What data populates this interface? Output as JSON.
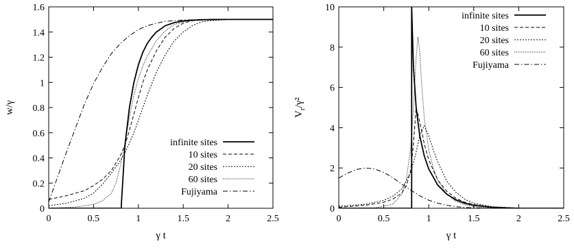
{
  "chart_data": [
    {
      "type": "line",
      "xlabel": "γ t",
      "ylabel": "w/γ",
      "xlim": [
        0,
        2.5
      ],
      "ylim": [
        0,
        1.6
      ],
      "xticks": [
        "0",
        "0.5",
        "1",
        "1.5",
        "2",
        "2.5"
      ],
      "yticks": [
        "0",
        "0.2",
        "0.4",
        "0.6",
        "0.8",
        "1",
        "1.2",
        "1.4",
        "1.6"
      ],
      "legend_position": "bottom-right",
      "series": [
        {
          "name": "infinite sites",
          "style": "solid-thick",
          "x": [
            0,
            0.81,
            0.81,
            0.85,
            0.9,
            0.95,
            1.0,
            1.05,
            1.1,
            1.15,
            1.2,
            1.3,
            1.4,
            1.5,
            1.6,
            1.7,
            1.8,
            2.0,
            2.5
          ],
          "y": [
            0,
            0,
            0.03,
            0.5,
            0.8,
            1.0,
            1.14,
            1.24,
            1.31,
            1.36,
            1.4,
            1.45,
            1.475,
            1.488,
            1.494,
            1.497,
            1.499,
            1.5,
            1.5
          ]
        },
        {
          "name": "10 sites",
          "style": "dashed",
          "x": [
            0,
            0.2,
            0.4,
            0.5,
            0.6,
            0.7,
            0.8,
            0.85,
            0.9,
            0.95,
            1.0,
            1.05,
            1.1,
            1.2,
            1.3,
            1.4,
            1.5,
            1.6,
            1.8,
            2.0,
            2.5
          ],
          "y": [
            0.07,
            0.1,
            0.14,
            0.18,
            0.23,
            0.3,
            0.42,
            0.5,
            0.62,
            0.75,
            0.88,
            1.0,
            1.1,
            1.25,
            1.36,
            1.43,
            1.47,
            1.49,
            1.5,
            1.5,
            1.5
          ]
        },
        {
          "name": "20 sites",
          "style": "dotted",
          "x": [
            0,
            0.2,
            0.4,
            0.5,
            0.6,
            0.7,
            0.8,
            0.85,
            0.9,
            0.95,
            1.0,
            1.05,
            1.1,
            1.2,
            1.3,
            1.4,
            1.5,
            1.6,
            1.7,
            1.8,
            2.0,
            2.5
          ],
          "y": [
            0.02,
            0.04,
            0.08,
            0.12,
            0.19,
            0.28,
            0.38,
            0.44,
            0.52,
            0.6,
            0.7,
            0.8,
            0.9,
            1.08,
            1.22,
            1.33,
            1.4,
            1.45,
            1.48,
            1.49,
            1.5,
            1.5
          ]
        },
        {
          "name": "60 sites",
          "style": "fine-dotted",
          "x": [
            0,
            0.3,
            0.5,
            0.6,
            0.7,
            0.75,
            0.8,
            0.85,
            0.9,
            0.95,
            1.0,
            1.05,
            1.1,
            1.2,
            1.3,
            1.4,
            1.5,
            1.6,
            1.8,
            2.0,
            2.5
          ],
          "y": [
            0,
            0.01,
            0.03,
            0.06,
            0.12,
            0.2,
            0.34,
            0.52,
            0.72,
            0.9,
            1.03,
            1.13,
            1.21,
            1.33,
            1.41,
            1.46,
            1.48,
            1.495,
            1.5,
            1.5,
            1.5
          ]
        },
        {
          "name": "Fujiyama",
          "style": "dash-dot",
          "x": [
            0,
            0.1,
            0.2,
            0.3,
            0.4,
            0.5,
            0.6,
            0.7,
            0.8,
            0.9,
            1.0,
            1.1,
            1.2,
            1.3,
            1.5,
            1.7,
            2.0,
            2.5
          ],
          "y": [
            0.05,
            0.25,
            0.45,
            0.64,
            0.83,
            0.99,
            1.12,
            1.23,
            1.31,
            1.37,
            1.42,
            1.45,
            1.47,
            1.485,
            1.495,
            1.5,
            1.5,
            1.5
          ]
        }
      ]
    },
    {
      "type": "line",
      "xlabel": "γ t",
      "ylabel": "V_r/γ²",
      "xlim": [
        0,
        2.5
      ],
      "ylim": [
        0,
        10
      ],
      "xticks": [
        "0",
        "0.5",
        "1",
        "1.5",
        "2",
        "2.5"
      ],
      "yticks": [
        "0",
        "2",
        "4",
        "6",
        "8",
        "10"
      ],
      "legend_position": "top-right",
      "series": [
        {
          "name": "infinite sites",
          "style": "solid-thick",
          "x": [
            0,
            0.81,
            0.81,
            0.83,
            0.86,
            0.9,
            0.95,
            1.0,
            1.1,
            1.2,
            1.3,
            1.4,
            1.5,
            1.7,
            2.0,
            2.5
          ],
          "y": [
            0,
            0,
            10,
            7.0,
            5.0,
            3.6,
            2.6,
            1.95,
            1.15,
            0.7,
            0.42,
            0.25,
            0.15,
            0.05,
            0,
            0
          ]
        },
        {
          "name": "10 sites",
          "style": "dashed",
          "x": [
            0,
            0.3,
            0.5,
            0.6,
            0.7,
            0.75,
            0.8,
            0.83,
            0.86,
            0.9,
            0.95,
            1.0,
            1.1,
            1.2,
            1.3,
            1.4,
            1.5,
            1.7,
            2.0,
            2.5
          ],
          "y": [
            0.05,
            0.15,
            0.3,
            0.45,
            0.75,
            1.1,
            1.9,
            3.2,
            5.0,
            4.3,
            3.2,
            2.4,
            1.4,
            0.85,
            0.5,
            0.3,
            0.18,
            0.06,
            0,
            0
          ]
        },
        {
          "name": "20 sites",
          "style": "dotted",
          "x": [
            0,
            0.3,
            0.5,
            0.6,
            0.7,
            0.8,
            0.85,
            0.9,
            0.95,
            1.0,
            1.05,
            1.1,
            1.2,
            1.3,
            1.4,
            1.5,
            1.7,
            2.0,
            2.5
          ],
          "y": [
            0.1,
            0.2,
            0.4,
            0.6,
            0.95,
            1.8,
            2.6,
            3.6,
            4.1,
            3.6,
            2.9,
            2.3,
            1.35,
            0.8,
            0.45,
            0.25,
            0.08,
            0,
            0
          ]
        },
        {
          "name": "60 sites",
          "style": "fine-dotted",
          "x": [
            0,
            0.4,
            0.6,
            0.7,
            0.75,
            0.8,
            0.83,
            0.86,
            0.88,
            0.9,
            0.92,
            0.95,
            1.0,
            1.05,
            1.1,
            1.2,
            1.3,
            1.4,
            1.5,
            1.7,
            2.0,
            2.5
          ],
          "y": [
            0,
            0.02,
            0.2,
            0.7,
            1.4,
            3.0,
            5.0,
            7.5,
            8.5,
            7.8,
            6.2,
            4.5,
            2.9,
            2.0,
            1.4,
            0.7,
            0.35,
            0.18,
            0.08,
            0.02,
            0,
            0
          ]
        },
        {
          "name": "Fujiyama",
          "style": "dash-dot",
          "x": [
            0,
            0.1,
            0.2,
            0.3,
            0.4,
            0.5,
            0.6,
            0.7,
            0.8,
            0.9,
            1.0,
            1.1,
            1.2,
            1.3,
            1.4,
            1.5,
            1.7,
            2.0,
            2.5
          ],
          "y": [
            1.5,
            1.75,
            1.93,
            2.0,
            1.95,
            1.78,
            1.52,
            1.2,
            0.9,
            0.62,
            0.4,
            0.25,
            0.15,
            0.08,
            0.04,
            0.02,
            0,
            0,
            0
          ]
        }
      ]
    }
  ]
}
